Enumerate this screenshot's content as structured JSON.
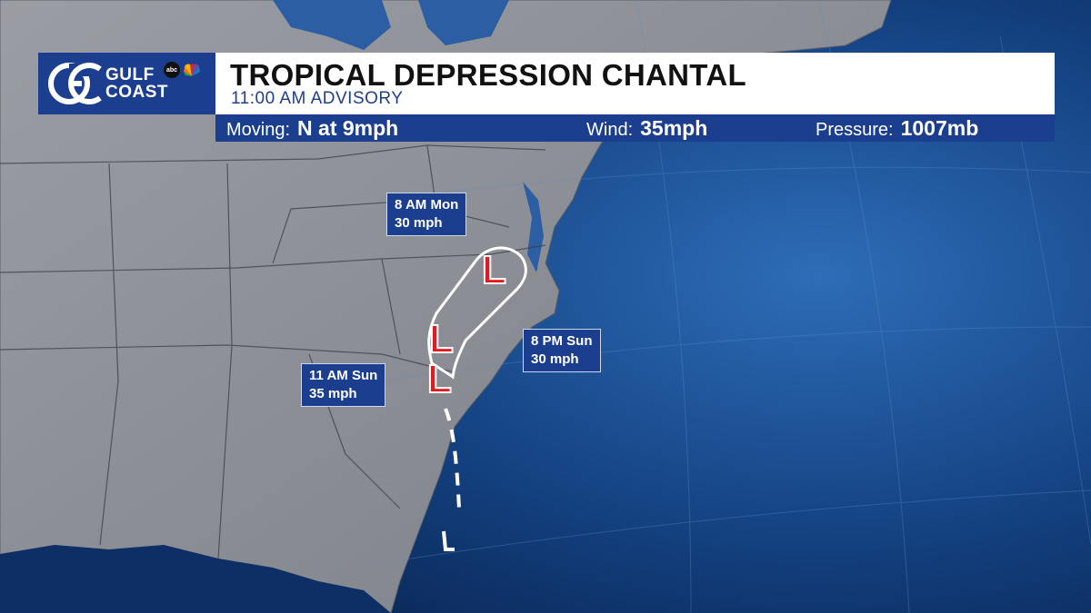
{
  "brand": {
    "logo_initials": "GC",
    "logo_line1": "GULF",
    "logo_line2": "COAST",
    "abc_badge": "abc",
    "nbc_icon": "nbc-peacock-icon"
  },
  "header": {
    "title": "TROPICAL DEPRESSION CHANTAL",
    "subtitle": "11:00 AM ADVISORY"
  },
  "info": {
    "moving_label": "Moving:",
    "moving_value": "N at 9mph",
    "wind_label": "Wind:",
    "wind_value": "35mph",
    "pressure_label": "Pressure:",
    "pressure_value": "1007mb"
  },
  "forecast_points": [
    {
      "time": "11 AM Sun",
      "wind": "35 mph"
    },
    {
      "time": "8 PM Sun",
      "wind": "30 mph"
    },
    {
      "time": "8 AM Mon",
      "wind": "30 mph"
    }
  ],
  "storm_symbol": "L",
  "colors": {
    "brand_blue": "#1b3f8e",
    "ocean": "#0e3470",
    "land": "#8a8d93",
    "storm_red": "#e01b22",
    "track": "#ffffff"
  }
}
